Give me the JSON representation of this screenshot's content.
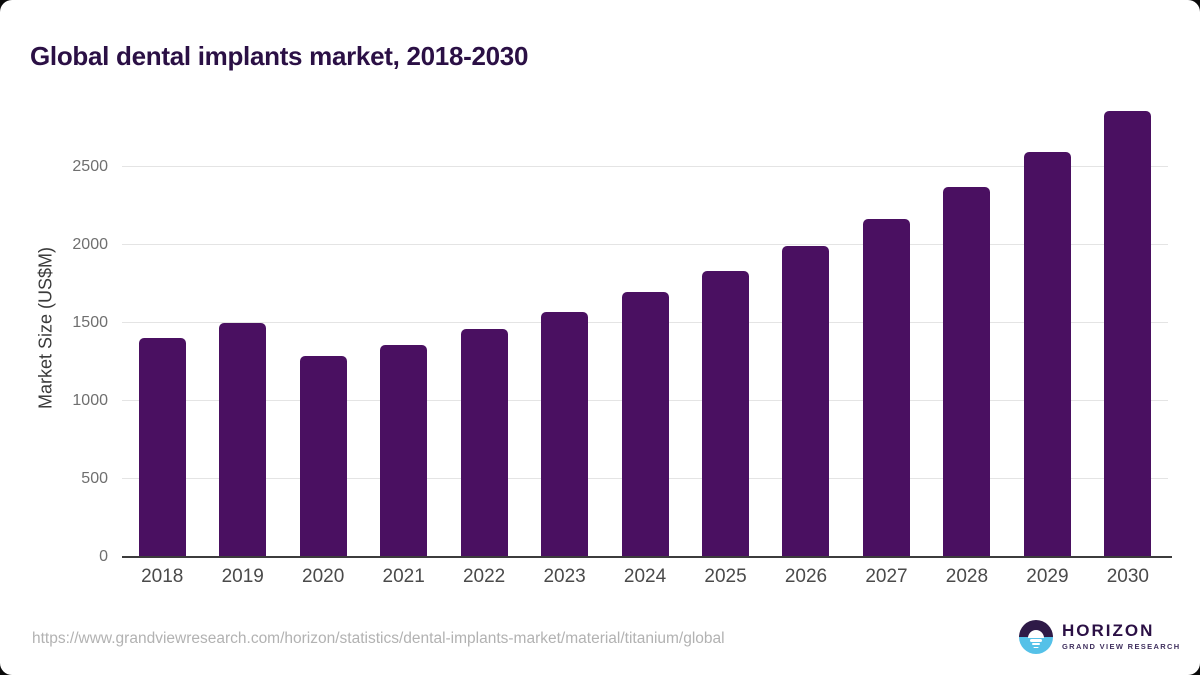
{
  "title": "Global dental implants market, 2018-2030",
  "chart_data": {
    "type": "bar",
    "title": "Global dental implants market, 2018-2030",
    "categories": [
      "2018",
      "2019",
      "2020",
      "2021",
      "2022",
      "2023",
      "2024",
      "2025",
      "2026",
      "2027",
      "2028",
      "2029",
      "2030"
    ],
    "values": [
      1400,
      1500,
      1285,
      1360,
      1460,
      1570,
      1695,
      1835,
      1990,
      2165,
      2370,
      2595,
      2860
    ],
    "xlabel": "",
    "ylabel": "Market Size (US$M)",
    "ylim": [
      0,
      2940
    ],
    "yticks": [
      0,
      500,
      1000,
      1500,
      2000,
      2500
    ],
    "grid": true,
    "legend": false,
    "bar_color": "#4a1061"
  },
  "footer": {
    "source_url": "https://www.grandviewresearch.com/horizon/statistics/dental-implants-market/material/titanium/global",
    "logo": {
      "brand": "HORIZON",
      "sub_brand": "GRAND VIEW RESEARCH",
      "icon": "horizon-sunrise-over-water-icon"
    }
  },
  "colors": {
    "bar": "#4a1061",
    "title_text": "#2b1045",
    "logo_blue": "#55c1e8",
    "logo_purple": "#2e1a47",
    "gridline": "#e4e4e4",
    "axis_line": "#3c3c3c"
  }
}
